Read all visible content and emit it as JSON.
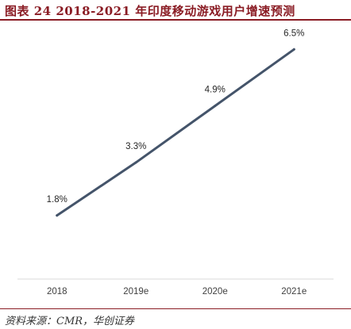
{
  "header": {
    "title": "图表 24   2018-2021 年印度移动游戏用户增速预测"
  },
  "footer": {
    "source": "资料来源：CMR，华创证券"
  },
  "colors": {
    "accent": "#8a1c24",
    "line": "#44546a",
    "axis": "#d9d9d9"
  },
  "chart_data": {
    "type": "line",
    "categories": [
      "2018",
      "2019e",
      "2020e",
      "2021e"
    ],
    "series": [
      {
        "values": [
          1.8,
          3.3,
          4.9,
          6.5
        ],
        "labels": [
          "1.8%",
          "3.3%",
          "4.9%",
          "6.5%"
        ]
      }
    ],
    "ylim": [
      0,
      7
    ],
    "grid": false,
    "legend": "none"
  }
}
